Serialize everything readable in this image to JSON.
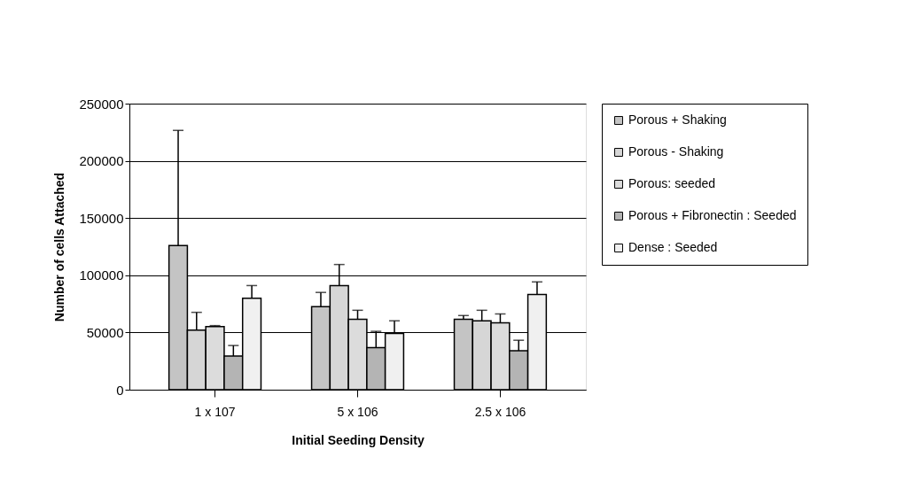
{
  "chart_data": {
    "type": "bar",
    "xlabel": "Initial Seeding Density",
    "ylabel": "Number of cells Attached",
    "categories": [
      "1 x 107",
      "5 x 106",
      "2.5 x 106"
    ],
    "series": [
      {
        "name": "Porous + Shaking",
        "color": "#c4c4c4",
        "values": [
          126000,
          72600,
          61600
        ],
        "errors": [
          [
            126000,
            226600
          ],
          [
            72600,
            85000
          ],
          [
            61600,
            64800
          ]
        ]
      },
      {
        "name": "Porous - Shaking",
        "color": "#d6d6d6",
        "values": [
          52000,
          91000,
          60200
        ],
        "errors": [
          [
            52000,
            67600
          ],
          [
            91000,
            109400
          ],
          [
            60200,
            69400
          ]
        ]
      },
      {
        "name": "Porous: seeded",
        "color": "#dcdcdc",
        "values": [
          55200,
          61600,
          58400
        ],
        "errors": [
          [
            55200,
            56000
          ],
          [
            61600,
            69400
          ],
          [
            58400,
            66200
          ]
        ]
      },
      {
        "name": "Porous + Fibronectin : Seeded",
        "color": "#b4b4b4",
        "values": [
          29400,
          36800,
          34000
        ],
        "errors": [
          [
            29400,
            38600
          ],
          [
            36800,
            51000
          ],
          [
            34000,
            43200
          ]
        ]
      },
      {
        "name": "Dense : Seeded",
        "color": "#f0f0f0",
        "values": [
          80000,
          49200,
          83200
        ],
        "errors": [
          [
            80000,
            91000
          ],
          [
            49200,
            60200
          ],
          [
            83200,
            94200
          ]
        ]
      }
    ],
    "ylim": [
      0,
      250000
    ],
    "yticks": [
      0,
      50000,
      100000,
      150000,
      200000,
      250000
    ],
    "grid": "y",
    "legend": "right"
  }
}
